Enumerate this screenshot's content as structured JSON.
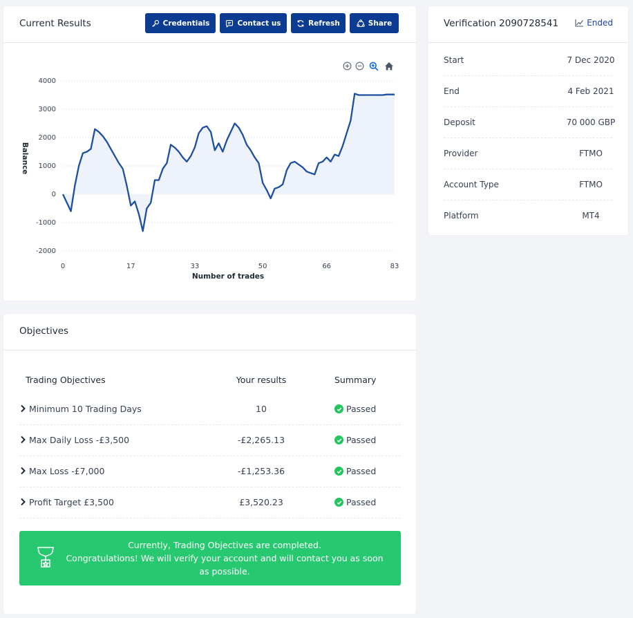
{
  "results": {
    "title": "Current Results",
    "buttons": {
      "credentials": "Credentials",
      "contact": "Contact us",
      "refresh": "Refresh",
      "share": "Share"
    },
    "toolbar_icons": [
      "zoom-in-icon",
      "zoom-out-icon",
      "zoom-selection-icon",
      "home-reset-icon"
    ]
  },
  "chart_data": {
    "type": "area",
    "xlabel": "Number of trades",
    "ylabel": "Balance",
    "xlim": [
      0,
      83
    ],
    "ylim": [
      -2000,
      4000
    ],
    "xticks": [
      "0",
      "17",
      "33",
      "50",
      "66",
      "83"
    ],
    "yticks": [
      "4000",
      "3000",
      "2000",
      "1000",
      "0",
      "-1000",
      "-2000"
    ],
    "grid": true,
    "line_color": "#1c4fa0",
    "fill_color": "#eef2fa",
    "series": [
      {
        "x": [
          0,
          1,
          2,
          3,
          4,
          5,
          6,
          7,
          8,
          9,
          10,
          11,
          12,
          13,
          14,
          15,
          16,
          17,
          18,
          19,
          20,
          21,
          22,
          23,
          24,
          25,
          26,
          27,
          28,
          29,
          30,
          31,
          32,
          33,
          34,
          35,
          36,
          37,
          38,
          39,
          40,
          41,
          42,
          43,
          44,
          45,
          46,
          47,
          48,
          49,
          50,
          51,
          52,
          53,
          54,
          55,
          56,
          57,
          58,
          59,
          60,
          61,
          62,
          63,
          64,
          65,
          66,
          67,
          68,
          69,
          70,
          71,
          72,
          73,
          74,
          75,
          76,
          77,
          78,
          79,
          80,
          81,
          82,
          83
        ],
        "y": [
          0,
          -300,
          -600,
          300,
          1000,
          1450,
          1500,
          1600,
          2300,
          2200,
          2050,
          1850,
          1600,
          1350,
          1100,
          900,
          300,
          -400,
          -250,
          -700,
          -1300,
          -500,
          -300,
          500,
          500,
          900,
          1100,
          1750,
          1650,
          1500,
          1300,
          1150,
          1350,
          1650,
          2150,
          2350,
          2400,
          2200,
          1550,
          1800,
          1500,
          1900,
          2200,
          2500,
          2350,
          2100,
          1750,
          1550,
          1300,
          1100,
          400,
          150,
          -150,
          200,
          250,
          350,
          850,
          1100,
          1150,
          1050,
          950,
          800,
          750,
          700,
          1100,
          1150,
          1300,
          1150,
          1400,
          1350,
          1700,
          2150,
          2600,
          3550,
          3500,
          3500,
          3500,
          3500,
          3500,
          3500,
          3500,
          3520,
          3520,
          3520
        ]
      }
    ]
  },
  "verification": {
    "title": "Verification 2090728541",
    "status": "Ended",
    "rows": [
      {
        "label": "Start",
        "value": "7 Dec 2020"
      },
      {
        "label": "End",
        "value": "4 Feb 2021"
      },
      {
        "label": "Deposit",
        "value": "70 000 GBP"
      },
      {
        "label": "Provider",
        "value": "FTMO"
      },
      {
        "label": "Account Type",
        "value": "FTMO"
      },
      {
        "label": "Platform",
        "value": "MT4"
      }
    ]
  },
  "objectives": {
    "title": "Objectives",
    "columns": {
      "objective": "Trading Objectives",
      "results": "Your results",
      "summary": "Summary"
    },
    "rows": [
      {
        "name": "Minimum 10 Trading Days",
        "result": "10",
        "summary": "Passed"
      },
      {
        "name": "Max Daily Loss -£3,500",
        "result": "-£2,265.13",
        "summary": "Passed"
      },
      {
        "name": "Max Loss -£7,000",
        "result": "-£1,253.36",
        "summary": "Passed"
      },
      {
        "name": "Profit Target £3,500",
        "result": "£3,520.23",
        "summary": "Passed"
      }
    ],
    "success_line1": "Currently, Trading Objectives are completed.",
    "success_line2": "Congratulations! We will verify your account and will contact you as soon as possible."
  }
}
